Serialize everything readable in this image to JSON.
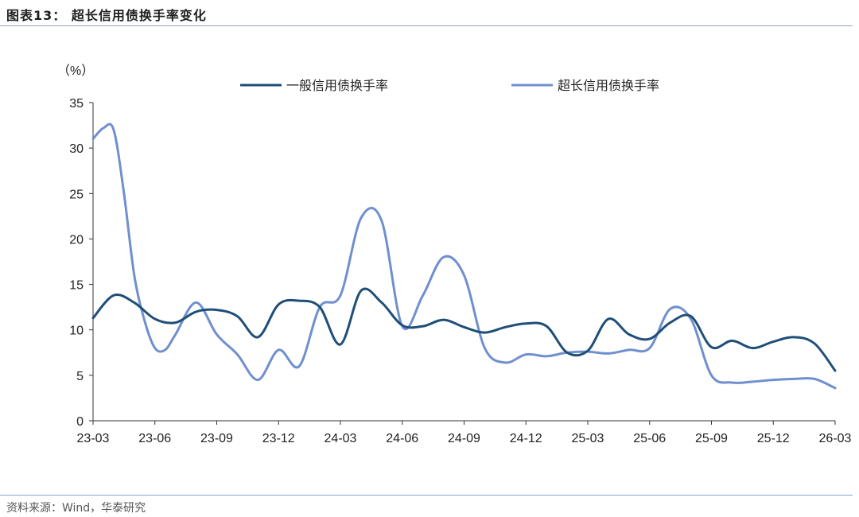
{
  "header": {
    "title": "图表13： 超长信用债换手率变化"
  },
  "footer": {
    "source": "资料来源：Wind，华泰研究"
  },
  "chart_data": {
    "type": "line",
    "ylabel": "（%）",
    "ylim": [
      0,
      35
    ],
    "yticks": [
      0,
      5,
      10,
      15,
      20,
      25,
      30,
      35
    ],
    "xticks": [
      "23-03",
      "23-06",
      "23-09",
      "23-12",
      "24-03",
      "24-06",
      "24-09",
      "24-12",
      "25-03",
      "25-06",
      "25-09",
      "25-12",
      "26-03"
    ],
    "xlim": [
      0,
      36
    ],
    "legend": "top",
    "grid": false,
    "colors": {
      "general": "#1f4e79",
      "ultra": "#6f8fcf"
    },
    "series": [
      {
        "name": "一般信用债换手率",
        "x": [
          0,
          1,
          2,
          3,
          4,
          5,
          6,
          7,
          8,
          9,
          10,
          11,
          12,
          13,
          14,
          15,
          16,
          17,
          18,
          19,
          20,
          21,
          22,
          23,
          24,
          25,
          26,
          27,
          28,
          29,
          30,
          31,
          32,
          33,
          34,
          35,
          36
        ],
        "values": [
          11.3,
          13.8,
          13.0,
          11.2,
          10.8,
          12.0,
          12.2,
          11.5,
          9.2,
          12.8,
          13.2,
          12.5,
          8.4,
          14.3,
          13.0,
          10.5,
          10.4,
          11.1,
          10.3,
          9.7,
          10.3,
          10.7,
          10.4,
          7.5,
          7.7,
          11.2,
          9.5,
          9.0,
          10.8,
          11.5,
          8.1,
          8.8,
          8.0,
          8.7,
          9.2,
          8.5,
          5.5
        ]
      },
      {
        "name": "超长信用债换手率",
        "x": [
          0,
          0.5,
          1,
          1.5,
          2,
          2.5,
          3,
          3.5,
          4,
          5,
          6,
          7,
          8,
          9,
          10,
          11,
          12,
          13,
          14,
          15,
          16,
          17,
          18,
          19,
          20,
          21,
          22,
          23,
          24,
          25,
          26,
          27,
          28,
          29,
          30,
          31,
          32,
          33,
          34,
          35,
          36
        ],
        "values": [
          31.0,
          32.2,
          32.0,
          25.0,
          16.0,
          11.0,
          8.0,
          7.8,
          9.5,
          13.0,
          9.5,
          7.3,
          4.5,
          7.8,
          6.0,
          12.5,
          13.8,
          22.3,
          22.0,
          10.4,
          13.8,
          18.0,
          16.0,
          8.0,
          6.4,
          7.3,
          7.1,
          7.5,
          7.6,
          7.4,
          7.8,
          8.0,
          12.3,
          11.2,
          5.0,
          4.2,
          4.3,
          4.5,
          4.6,
          4.6,
          3.6
        ]
      }
    ]
  }
}
